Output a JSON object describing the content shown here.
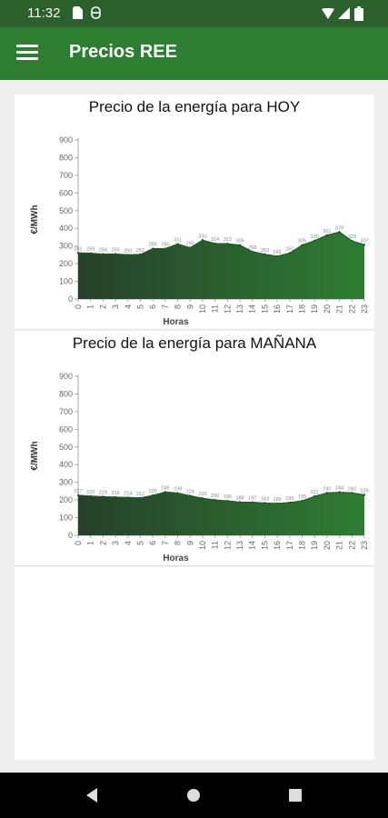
{
  "status": {
    "time": "11:32"
  },
  "app": {
    "title": "Precios REE"
  },
  "chart_data": [
    {
      "type": "area",
      "title": "Precio de la energía para HOY",
      "xlabel": "Horas",
      "ylabel": "€/MWh",
      "ylim": [
        0,
        900
      ],
      "yticks": [
        0,
        100,
        200,
        300,
        400,
        500,
        600,
        700,
        800,
        900
      ],
      "categories": [
        "0",
        "1",
        "2",
        "3",
        "4",
        "5",
        "6",
        "7",
        "8",
        "9",
        "10",
        "11",
        "12",
        "13",
        "14",
        "15",
        "16",
        "17",
        "18",
        "19",
        "20",
        "21",
        "22",
        "23"
      ],
      "values": [
        261,
        259,
        254,
        255,
        250,
        252,
        285,
        285,
        311,
        290,
        333,
        314,
        313,
        305,
        268,
        253,
        242,
        260,
        305,
        330,
        361,
        379,
        329,
        307
      ],
      "color": "#2e7d32"
    },
    {
      "type": "area",
      "title": "Precio de la energía para MAÑANA",
      "xlabel": "Horas",
      "ylabel": "€/MWh",
      "ylim": [
        0,
        900
      ],
      "yticks": [
        0,
        100,
        200,
        300,
        400,
        500,
        600,
        700,
        800,
        900
      ],
      "categories": [
        "0",
        "1",
        "2",
        "3",
        "4",
        "5",
        "6",
        "7",
        "8",
        "9",
        "10",
        "11",
        "12",
        "13",
        "14",
        "15",
        "16",
        "17",
        "18",
        "19",
        "20",
        "21",
        "22",
        "23"
      ],
      "values": [
        227,
        222,
        219,
        216,
        214,
        212,
        226,
        245,
        239,
        224,
        210,
        200,
        195,
        188,
        187,
        183,
        180,
        185,
        195,
        221,
        240,
        244,
        240,
        229
      ],
      "color": "#2e7d32"
    }
  ]
}
